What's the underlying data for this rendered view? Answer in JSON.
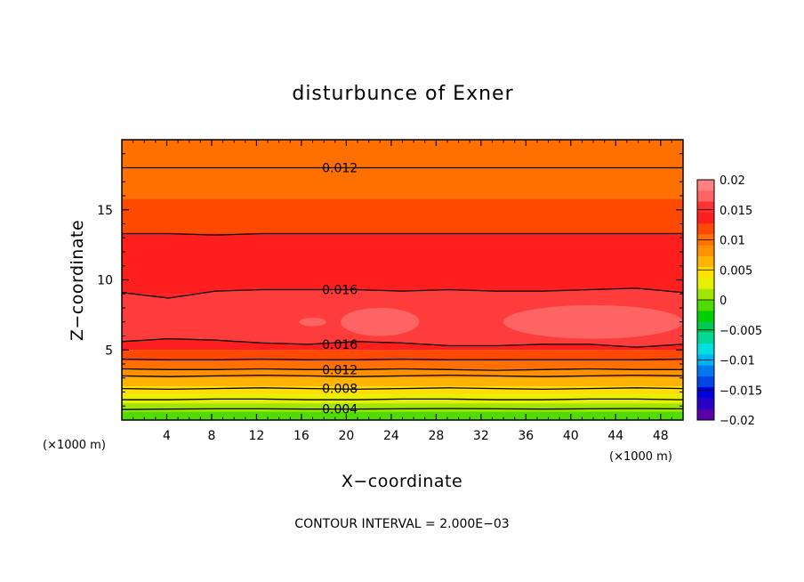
{
  "chart_data": {
    "type": "contour",
    "title": "disturbunce of Exner",
    "xlabel": "X−coordinate",
    "ylabel": "Z−coordinate",
    "x_unit": "(×1000 m)",
    "y_unit": "(×1000 m)",
    "xlim": [
      0,
      50
    ],
    "ylim": [
      0,
      20
    ],
    "x_ticks": [
      4,
      8,
      12,
      16,
      20,
      24,
      28,
      32,
      36,
      40,
      44,
      48
    ],
    "x_tick_labels": [
      "4",
      "8",
      "12",
      "16",
      "20",
      "24",
      "28",
      "32",
      "36",
      "40",
      "44",
      "48"
    ],
    "y_ticks": [
      5,
      10,
      15
    ],
    "y_tick_labels": [
      "5",
      "10",
      "15"
    ],
    "footer": "CONTOUR INTERVAL = 2.000E−03",
    "colorbar": {
      "labels": [
        "0.02",
        "0.015",
        "0.01",
        "0.005",
        "0",
        "−0.005",
        "−0.01",
        "−0.015",
        "−0.02"
      ],
      "colors_top_to_bottom": [
        "#ff8080",
        "#ff6464",
        "#ff3232",
        "#ff1e1e",
        "#ff4800",
        "#ff7000",
        "#ff9000",
        "#ffb400",
        "#ffe000",
        "#e6f000",
        "#a0e600",
        "#50dc00",
        "#00d000",
        "#00c850",
        "#00d898",
        "#00e0e0",
        "#00b4f0",
        "#0078f0",
        "#0046e6",
        "#0000dc",
        "#2800c8",
        "#5a00aa"
      ]
    },
    "bands_bottom_to_top": [
      {
        "zlow": 0.0,
        "zhigh": 0.6,
        "color": "#50dc00"
      },
      {
        "zlow": 0.6,
        "zhigh": 1.2,
        "color": "#a0e600"
      },
      {
        "zlow": 1.2,
        "zhigh": 1.8,
        "color": "#e6f000"
      },
      {
        "zlow": 1.8,
        "zhigh": 2.4,
        "color": "#ffe000"
      },
      {
        "zlow": 2.4,
        "zhigh": 3.0,
        "color": "#ffb400"
      },
      {
        "zlow": 3.0,
        "zhigh": 3.6,
        "color": "#ff9000"
      },
      {
        "zlow": 3.6,
        "zhigh": 4.2,
        "color": "#ff7000"
      },
      {
        "zlow": 4.2,
        "zhigh": 5.0,
        "color": "#ff4800"
      },
      {
        "zlow": 5.0,
        "zhigh": 9.0,
        "color": "#ff1e1e"
      },
      {
        "zlow": 9.0,
        "zhigh": 13.3,
        "color": "#ff1e1e"
      },
      {
        "zlow": 13.3,
        "zhigh": 15.8,
        "color": "#ff4800"
      },
      {
        "zlow": 15.8,
        "zhigh": 20.0,
        "color": "#ff7000"
      }
    ],
    "contour_lines": [
      {
        "value": 0.004,
        "label": "0.004",
        "z": [
          0.75,
          0.78,
          0.8,
          0.8,
          0.78,
          0.78,
          0.8,
          0.82,
          0.8,
          0.78,
          0.8,
          0.82,
          0.8
        ],
        "label_x": 18
      },
      {
        "value": 0.006,
        "label": "",
        "z": [
          1.45,
          1.45,
          1.5,
          1.5,
          1.45,
          1.45,
          1.5,
          1.5,
          1.45,
          1.45,
          1.5,
          1.5,
          1.45
        ],
        "label_x": null
      },
      {
        "value": 0.008,
        "label": "0.008",
        "z": [
          2.25,
          2.2,
          2.25,
          2.3,
          2.25,
          2.2,
          2.25,
          2.3,
          2.25,
          2.2,
          2.25,
          2.3,
          2.25
        ],
        "label_x": 18
      },
      {
        "value": 0.01,
        "label": "",
        "z": [
          3.15,
          3.1,
          3.15,
          3.2,
          3.15,
          3.1,
          3.15,
          3.2,
          3.15,
          3.1,
          3.15,
          3.2,
          3.15
        ],
        "label_x": null
      },
      {
        "value": 0.012,
        "label": "0.012",
        "z": [
          3.65,
          3.6,
          3.6,
          3.65,
          3.6,
          3.6,
          3.65,
          3.6,
          3.55,
          3.6,
          3.65,
          3.6,
          3.6
        ],
        "label_x": 18
      },
      {
        "value": 0.014,
        "label": "",
        "z": [
          4.35,
          4.3,
          4.3,
          4.35,
          4.3,
          4.3,
          4.35,
          4.3,
          4.3,
          4.3,
          4.3,
          4.3,
          4.35
        ],
        "label_x": null
      },
      {
        "value": 0.016,
        "label": "0.016",
        "z": [
          5.6,
          5.8,
          5.7,
          5.5,
          5.4,
          5.6,
          5.5,
          5.3,
          5.3,
          5.4,
          5.4,
          5.2,
          5.4
        ],
        "label_x": 18
      },
      {
        "value": 0.016,
        "label": "0.016",
        "z": [
          9.1,
          8.7,
          9.2,
          9.3,
          9.3,
          9.3,
          9.2,
          9.3,
          9.2,
          9.2,
          9.3,
          9.4,
          9.1
        ],
        "label_x": 18
      },
      {
        "value": 0.014,
        "label": "",
        "z": [
          13.3,
          13.3,
          13.2,
          13.3,
          13.3,
          13.3,
          13.3,
          13.3,
          13.3,
          13.3,
          13.3,
          13.3,
          13.3
        ],
        "label_x": null
      },
      {
        "value": 0.012,
        "label": "0.012",
        "z": [
          18.0,
          18.0,
          18.0,
          18.0,
          18.0,
          18.0,
          18.0,
          18.0,
          18.0,
          18.0,
          18.0,
          18.0,
          18.0
        ],
        "label_x": 18
      }
    ],
    "highlight_blobs": [
      {
        "cx": 23,
        "cz": 7.0,
        "rx": 3.5,
        "rz": 1.0,
        "color": "#ff6464"
      },
      {
        "cx": 42,
        "cz": 7.0,
        "rx": 8,
        "rz": 1.2,
        "color": "#ff6464"
      },
      {
        "cx": 17,
        "cz": 7.0,
        "rx": 1.2,
        "rz": 0.3,
        "color": "#ff6464"
      }
    ]
  }
}
